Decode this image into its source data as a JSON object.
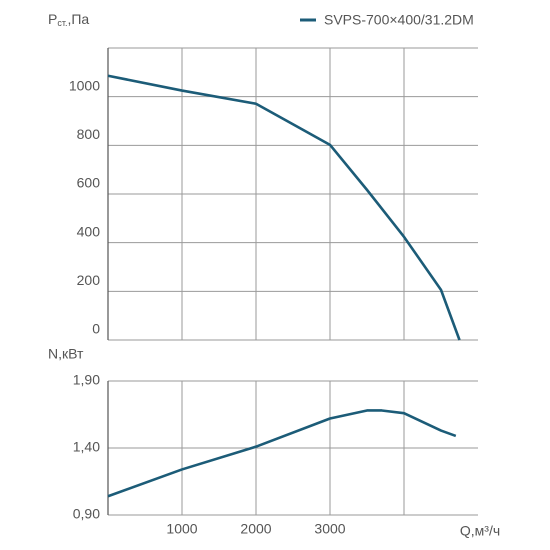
{
  "chart_data": [
    {
      "type": "line",
      "y_label": {
        "main": "P",
        "sub": "ст.",
        "unit": ",Па"
      },
      "legend": "top-right",
      "xlim": [
        0,
        5000
      ],
      "xgrid": [
        1000,
        2000,
        3000,
        4000
      ],
      "ylim": [
        0,
        1200
      ],
      "yticks": [
        0,
        200,
        400,
        600,
        800,
        1000
      ],
      "grid": true,
      "series": [
        {
          "name": "SVPS-700×400/31.2DM",
          "color": "#1c5c78",
          "x": [
            0,
            1000,
            2000,
            3000,
            3500,
            4000,
            4500,
            4750
          ],
          "values": [
            1086,
            1025,
            971,
            802,
            617,
            424,
            206,
            0
          ]
        }
      ]
    },
    {
      "type": "line",
      "y_label": "N,кВт",
      "x_label": "Q,м³/ч",
      "xlim": [
        0,
        5000
      ],
      "xgrid": [
        1000,
        2000,
        3000,
        4000
      ],
      "xticks": [
        1000,
        2000,
        3000
      ],
      "ylim": [
        0.9,
        1.9
      ],
      "yticks": [
        {
          "value": 0.9,
          "label": "0,90"
        },
        {
          "value": 1.4,
          "label": "1,40"
        },
        {
          "value": 1.9,
          "label": "1,90"
        }
      ],
      "grid": true,
      "series": [
        {
          "color": "#1c5c78",
          "x": [
            0,
            1000,
            2000,
            3000,
            3500,
            3700,
            4000,
            4500,
            4700
          ],
          "values": [
            1.04,
            1.24,
            1.41,
            1.62,
            1.68,
            1.68,
            1.66,
            1.53,
            1.49
          ]
        }
      ]
    }
  ]
}
